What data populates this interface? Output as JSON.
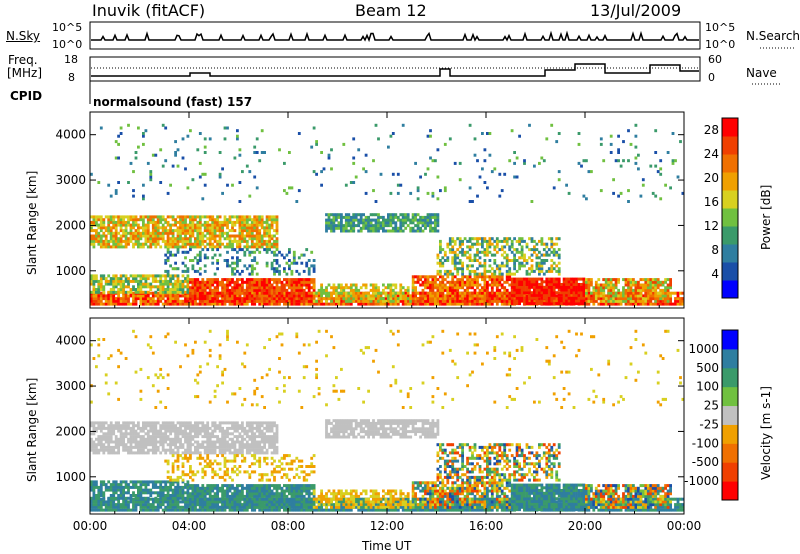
{
  "header": {
    "station": "Inuvik (fitACF)",
    "beam": "Beam 12",
    "date": "13/Jul/2009"
  },
  "top_panels": {
    "nsky_label": "N.Sky",
    "nsky_ticks": [
      "10^5",
      "10^0"
    ],
    "nsearch_label": "N.Search",
    "freq_label_1": "Freq.",
    "freq_label_2": "[MHz]",
    "freq_ticks": [
      "18",
      "8"
    ],
    "nave_ticks": [
      "60",
      "0"
    ],
    "nave_label": "Nave",
    "cpid_label": "CPID",
    "cpid_value": "normalsound (fast) 157"
  },
  "colors": {
    "scale": [
      "#0000ff",
      "#1a4fa8",
      "#2f7ea0",
      "#3a9a6a",
      "#70c040",
      "#d8d020",
      "#f0a000",
      "#f07000",
      "#f04000",
      "#ff0000"
    ],
    "ground_scatter": "#c0c0c0"
  },
  "chart_data": [
    {
      "type": "heatmap",
      "name": "power",
      "ylabel": "Slant Range [km]",
      "xlabel": "",
      "xlim": [
        0,
        24
      ],
      "ylim": [
        180,
        4500
      ],
      "x_ticks": [
        "00:00",
        "04:00",
        "08:00",
        "12:00",
        "16:00",
        "20:00",
        "00:00"
      ],
      "y_ticks": [
        1000,
        2000,
        3000,
        4000
      ],
      "colorbar_label": "Power [dB]",
      "colorbar_ticks": [
        4,
        8,
        12,
        16,
        20,
        24,
        28
      ]
    },
    {
      "type": "heatmap",
      "name": "velocity",
      "ylabel": "Slant Range [km]",
      "xlabel": "Time UT",
      "xlim": [
        0,
        24
      ],
      "ylim": [
        180,
        4500
      ],
      "x_ticks": [
        "00:00",
        "04:00",
        "08:00",
        "12:00",
        "16:00",
        "20:00",
        "00:00"
      ],
      "y_ticks": [
        1000,
        2000,
        3000,
        4000
      ],
      "colorbar_label": "Velocity [m s-1]",
      "colorbar_ticks": [
        "1000",
        "500",
        "100",
        "25",
        "-25",
        "-100",
        "-500",
        "-1000"
      ]
    }
  ]
}
